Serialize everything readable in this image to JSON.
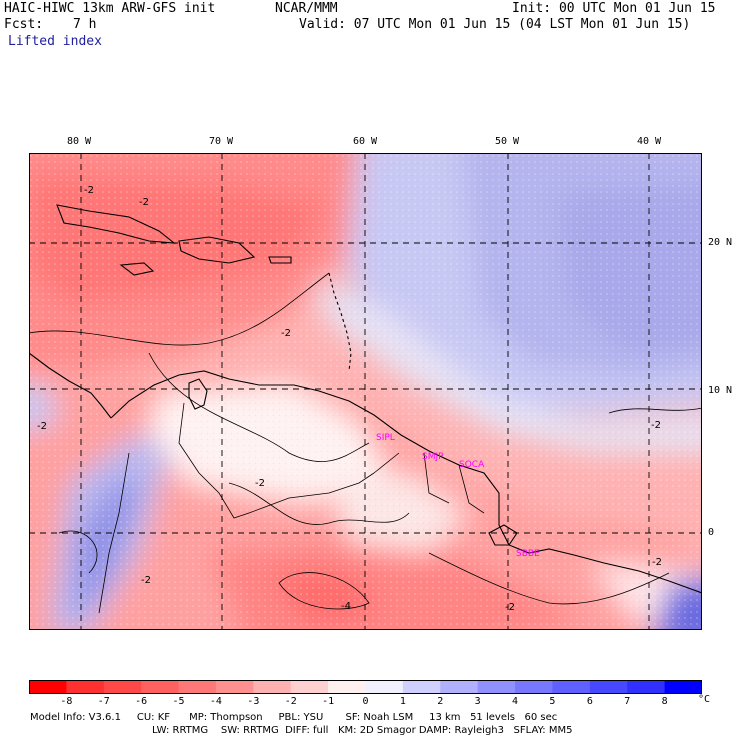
{
  "header": {
    "model": "HAIC-HIWC 13km ARW-GFS init",
    "center": "NCAR/MMM",
    "fcst_label": "Fcst:",
    "fcst_value": "7 h",
    "init": "Init: 00 UTC Mon 01 Jun 15",
    "valid": "Valid: 07 UTC Mon 01 Jun 15 (04 LST Mon 01 Jun 15)",
    "field": "Lifted index"
  },
  "axes": {
    "lon_labels": [
      "80 W",
      "70 W",
      "60 W",
      "50 W",
      "40 W"
    ],
    "lat_labels": [
      "20 N",
      "10 N",
      "0"
    ]
  },
  "stations": [
    "SIPL",
    "SMJP",
    "SOCA",
    "SBBE"
  ],
  "contour_labels": [
    "-2",
    "-2",
    "-2",
    "-2",
    "-2",
    "-4",
    "-2",
    "-2",
    "-2",
    "-2"
  ],
  "colorbar": {
    "ticks": [
      "-8",
      "-7",
      "-6",
      "-5",
      "-4",
      "-3",
      "-2",
      "-1",
      "0",
      "1",
      "2",
      "3",
      "4",
      "5",
      "6",
      "7",
      "8"
    ],
    "unit": "°C",
    "colors": [
      "#ff0000",
      "#ff3030",
      "#ff4848",
      "#ff6060",
      "#ff7878",
      "#ff9090",
      "#ffb0b0",
      "#ffd0d0",
      "#fff0f0",
      "#f0f0ff",
      "#d0d0ff",
      "#b0b0ff",
      "#9090ff",
      "#7878ff",
      "#6060ff",
      "#4848ff",
      "#3030ff",
      "#0000ff"
    ]
  },
  "footer": {
    "line1": "Model Info: V3.6.1     CU: KF      MP: Thompson     PBL: YSU       SF: Noah LSM     13 km   51 levels   60 sec",
    "line2": "LW: RRTMG    SW: RRTMG  DIFF: full   KM: 2D Smagor DAMP: Rayleigh3   SFLAY: MM5"
  }
}
